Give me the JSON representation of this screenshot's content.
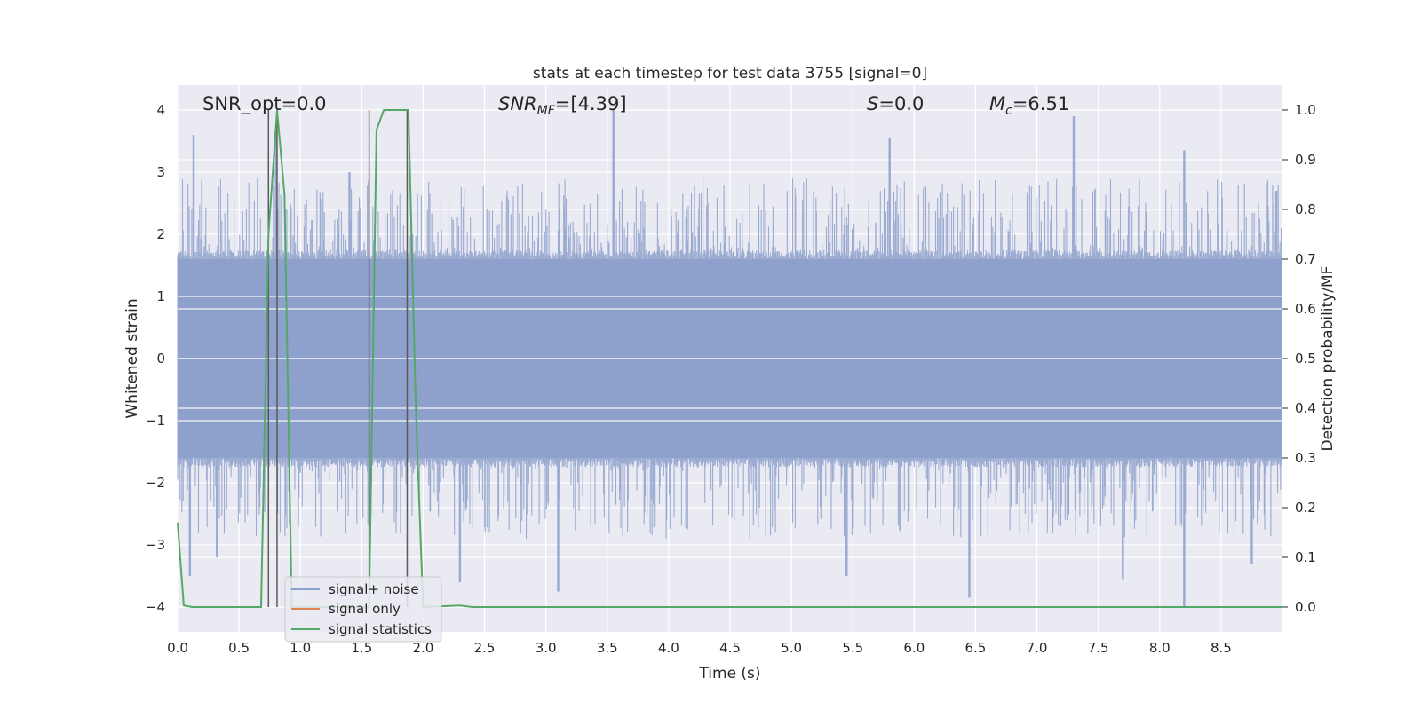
{
  "chart_data": {
    "type": "line",
    "title": "stats at each timestep for test data 3755 [signal=0]",
    "xlabel": "Time (s)",
    "ylabel": "Whitened strain",
    "y2label": "Detection probability/MF",
    "xlim": [
      0,
      9.0
    ],
    "ylim": [
      -4.4,
      4.4
    ],
    "y2lim": [
      -0.05,
      1.05
    ],
    "xticks": [
      "0.0",
      "0.5",
      "1.0",
      "1.5",
      "2.0",
      "2.5",
      "3.0",
      "3.5",
      "4.0",
      "4.5",
      "5.0",
      "5.5",
      "6.0",
      "6.5",
      "7.0",
      "7.5",
      "8.0",
      "8.5"
    ],
    "yticks": [
      "−4",
      "−3",
      "−2",
      "−1",
      "0",
      "1",
      "2",
      "3",
      "4"
    ],
    "y2ticks": [
      "0.0",
      "0.1",
      "0.2",
      "0.3",
      "0.4",
      "0.5",
      "0.6",
      "0.7",
      "0.8",
      "0.9",
      "1.0"
    ],
    "grid": true,
    "legend_position": "lower-left",
    "annotations": {
      "snr_opt": "SNR_opt=0.0",
      "snr_mf": "SNR",
      "snr_mf_sub": "MF",
      "snr_mf_val": "=[4.39]",
      "s_label": "S",
      "s_val": "=0.0",
      "mc_label": "M",
      "mc_sub": "c",
      "mc_val": "=6.51"
    },
    "series": [
      {
        "name": "signal+ noise",
        "axis": "left",
        "color": "#8da0cb",
        "envelope": {
          "typical_abs": 1.6,
          "peaks_positive": [
            [
              0.13,
              3.6
            ],
            [
              0.8,
              3.65
            ],
            [
              1.4,
              3.0
            ],
            [
              3.55,
              4.0
            ],
            [
              5.8,
              3.55
            ],
            [
              7.3,
              3.9
            ],
            [
              8.2,
              3.35
            ],
            [
              8.95,
              2.7
            ]
          ],
          "peaks_negative": [
            [
              0.1,
              -3.5
            ],
            [
              0.32,
              -3.2
            ],
            [
              2.3,
              -3.6
            ],
            [
              3.1,
              -3.75
            ],
            [
              5.45,
              -3.5
            ],
            [
              6.45,
              -3.85
            ],
            [
              7.7,
              -3.55
            ],
            [
              8.2,
              -4.0
            ],
            [
              8.75,
              -3.3
            ]
          ]
        }
      },
      {
        "name": "signal only",
        "axis": "left",
        "color": "#dd8452",
        "values": []
      },
      {
        "name": "signal statistics",
        "axis": "right",
        "color": "#55a868",
        "x": [
          0.0,
          0.05,
          0.12,
          0.68,
          0.74,
          0.81,
          0.87,
          0.93,
          1.56,
          1.62,
          1.68,
          1.75,
          1.88,
          1.94,
          2.0,
          2.3,
          2.4,
          9.0
        ],
        "values": [
          0.17,
          0.003,
          0.0,
          0.0,
          0.75,
          1.0,
          0.83,
          0.0,
          0.0,
          0.96,
          1.0,
          1.0,
          1.0,
          0.4,
          0.0,
          0.003,
          0.0,
          0.0
        ]
      }
    ],
    "vertical_markers": {
      "color": "#5a5a5a",
      "x": [
        0.74,
        0.81,
        1.56,
        1.87
      ],
      "y_top": [
        4.0,
        4.0,
        4.0,
        4.0
      ],
      "y_bottom": [
        -4.0,
        -4.0,
        -4.0,
        -4.0
      ]
    }
  }
}
